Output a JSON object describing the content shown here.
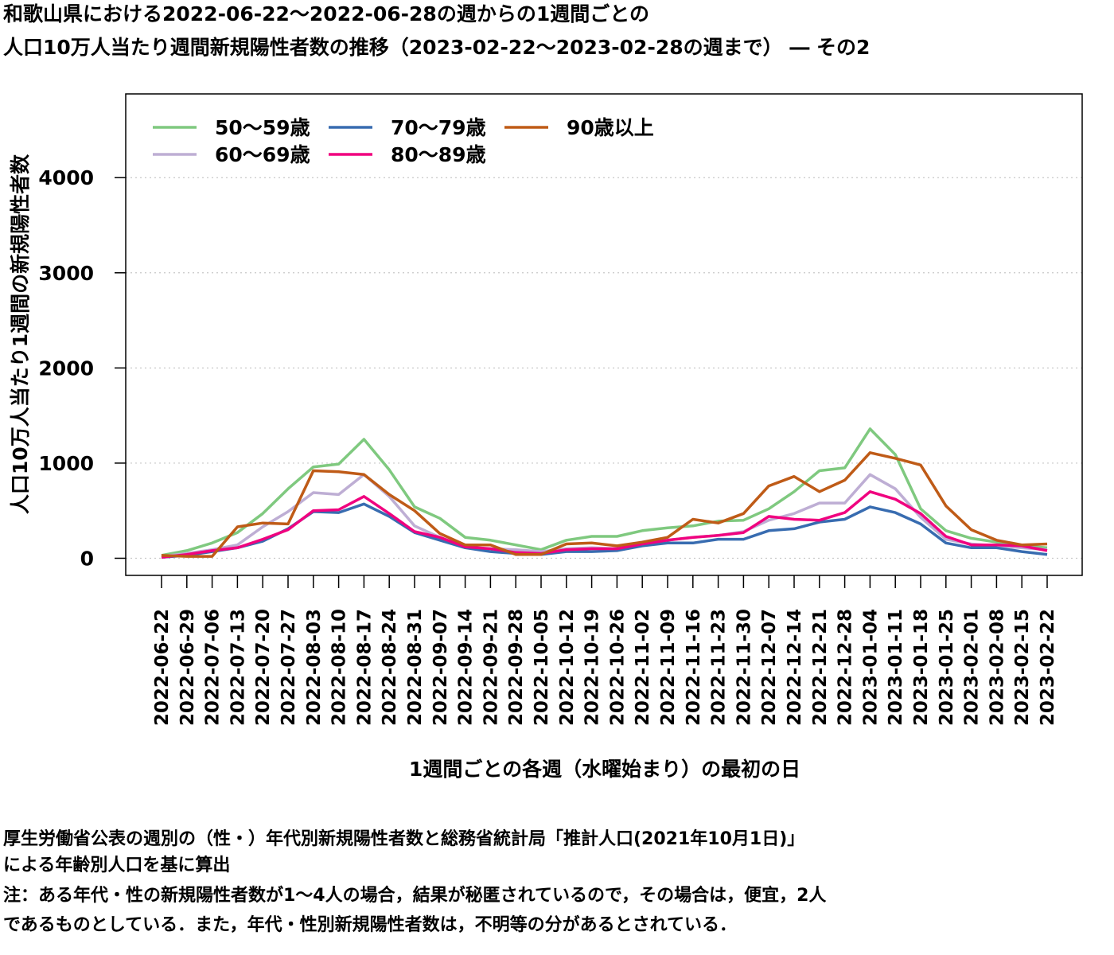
{
  "title": {
    "line1": "和歌山県における2022-06-22〜2022-06-28の週からの1週間ごとの",
    "line2": "人口10万人当たり週間新規陽性者数の推移（2023-02-22〜2023-02-28の週まで） ― その2"
  },
  "notes": {
    "line1": "厚生労働省公表の週別の（性・）年代別新規陽性者数と総務省統計局「推計人口(2021年10月1日)」",
    "line2": "による年齢別人口を基に算出",
    "line3": "注：ある年代・性の新規陽性者数が1〜4人の場合，結果が秘匿されているので，その場合は，便宜，2人",
    "line4": "であるものとしている．また，年代・性別新規陽性者数は，不明等の分があるとされている．"
  },
  "chart_data": {
    "type": "line",
    "xlabel": "1週間ごとの各週（水曜始まり）の最初の日",
    "ylabel": "人口10万人当たり1週間の新規陽性者数",
    "ylim": [
      -180,
      4880
    ],
    "yticks": [
      0,
      1000,
      2000,
      3000,
      4000
    ],
    "grid": true,
    "legend_position": "top-left",
    "categories": [
      "2022-06-22",
      "2022-06-29",
      "2022-07-06",
      "2022-07-13",
      "2022-07-20",
      "2022-07-27",
      "2022-08-03",
      "2022-08-10",
      "2022-08-17",
      "2022-08-24",
      "2022-08-31",
      "2022-09-07",
      "2022-09-14",
      "2022-09-21",
      "2022-09-28",
      "2022-10-05",
      "2022-10-12",
      "2022-10-19",
      "2022-10-26",
      "2022-11-02",
      "2022-11-09",
      "2022-11-16",
      "2022-11-23",
      "2022-11-30",
      "2022-12-07",
      "2022-12-14",
      "2022-12-21",
      "2022-12-28",
      "2023-01-04",
      "2023-01-11",
      "2023-01-18",
      "2023-01-25",
      "2023-02-01",
      "2023-02-08",
      "2023-02-15",
      "2023-02-22"
    ],
    "series": [
      {
        "name": "50〜59歳",
        "color": "#7fc97f",
        "values": [
          30,
          80,
          160,
          270,
          470,
          730,
          960,
          990,
          1250,
          930,
          540,
          420,
          220,
          190,
          140,
          90,
          190,
          230,
          230,
          290,
          320,
          340,
          390,
          400,
          520,
          700,
          920,
          950,
          1360,
          1090,
          520,
          290,
          210,
          170,
          130,
          110
        ]
      },
      {
        "name": "60〜69歳",
        "color": "#beaed4",
        "values": [
          20,
          50,
          90,
          140,
          330,
          490,
          690,
          670,
          880,
          650,
          340,
          220,
          110,
          100,
          90,
          70,
          100,
          110,
          100,
          150,
          190,
          220,
          240,
          280,
          400,
          470,
          580,
          580,
          880,
          730,
          430,
          200,
          150,
          130,
          110,
          90
        ]
      },
      {
        "name": "70〜79歳",
        "color": "#386cb0",
        "values": [
          10,
          30,
          70,
          110,
          180,
          310,
          490,
          480,
          570,
          440,
          270,
          190,
          110,
          70,
          50,
          40,
          70,
          70,
          80,
          130,
          160,
          160,
          200,
          200,
          290,
          310,
          380,
          410,
          540,
          480,
          360,
          160,
          110,
          110,
          70,
          40
        ]
      },
      {
        "name": "80〜89歳",
        "color": "#f0027f",
        "values": [
          10,
          40,
          80,
          110,
          200,
          300,
          500,
          510,
          650,
          470,
          280,
          220,
          120,
          100,
          60,
          50,
          90,
          100,
          100,
          150,
          190,
          220,
          240,
          270,
          440,
          410,
          400,
          480,
          700,
          620,
          470,
          230,
          140,
          140,
          130,
          80
        ]
      },
      {
        "name": "90歳以上",
        "color": "#bf5b17",
        "values": [
          30,
          20,
          20,
          330,
          370,
          360,
          920,
          910,
          880,
          670,
          500,
          260,
          140,
          140,
          40,
          40,
          150,
          160,
          130,
          170,
          220,
          410,
          370,
          470,
          760,
          860,
          700,
          820,
          1110,
          1050,
          980,
          550,
          300,
          190,
          140,
          150
        ]
      }
    ]
  }
}
